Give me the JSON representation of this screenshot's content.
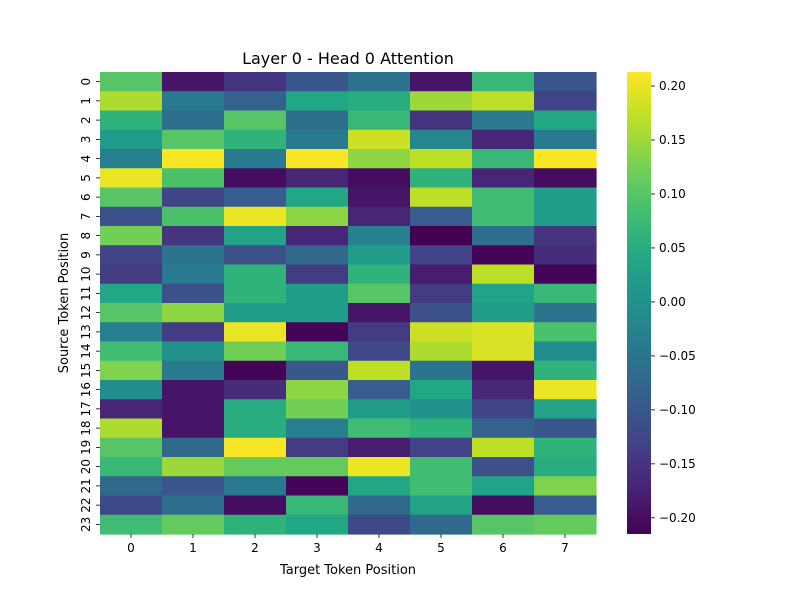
{
  "chart_data": {
    "type": "heatmap",
    "title": "Layer 0 - Head 0 Attention",
    "xlabel": "Target Token Position",
    "ylabel": "Source Token Position",
    "x_categories": [
      "0",
      "1",
      "2",
      "3",
      "4",
      "5",
      "6",
      "7"
    ],
    "y_categories": [
      "0",
      "1",
      "2",
      "3",
      "4",
      "5",
      "6",
      "7",
      "8",
      "9",
      "10",
      "11",
      "12",
      "13",
      "14",
      "15",
      "16",
      "17",
      "18",
      "19",
      "20",
      "21",
      "22",
      "23"
    ],
    "colormap": "viridis",
    "vmin": -0.215,
    "vmax": 0.213,
    "colorbar_ticks": [
      -0.2,
      -0.15,
      -0.1,
      -0.05,
      0.0,
      0.05,
      0.1,
      0.15,
      0.2
    ],
    "colorbar_tick_labels": [
      "−0.20",
      "−0.15",
      "−0.10",
      "−0.05",
      "0.00",
      "0.05",
      "0.10",
      "0.15",
      "0.20"
    ],
    "values": [
      [
        0.1,
        -0.19,
        -0.15,
        -0.1,
        -0.05,
        -0.19,
        0.07,
        -0.1
      ],
      [
        0.16,
        -0.04,
        -0.08,
        0.04,
        0.05,
        0.15,
        0.17,
        -0.13
      ],
      [
        0.06,
        -0.06,
        0.1,
        -0.06,
        0.07,
        -0.15,
        -0.04,
        0.04
      ],
      [
        0.02,
        0.1,
        0.06,
        -0.04,
        0.18,
        -0.02,
        -0.17,
        -0.04
      ],
      [
        -0.03,
        0.21,
        -0.04,
        0.21,
        0.14,
        0.17,
        0.07,
        0.21
      ],
      [
        0.2,
        0.09,
        -0.2,
        -0.17,
        -0.2,
        0.06,
        -0.17,
        -0.2
      ],
      [
        0.1,
        -0.13,
        -0.09,
        0.04,
        -0.19,
        0.17,
        0.08,
        0.02
      ],
      [
        -0.11,
        0.09,
        0.2,
        0.14,
        -0.17,
        -0.09,
        0.08,
        0.02
      ],
      [
        0.12,
        -0.15,
        0.03,
        -0.17,
        -0.03,
        -0.22,
        -0.06,
        -0.15
      ],
      [
        -0.13,
        -0.05,
        -0.11,
        -0.07,
        0.02,
        -0.13,
        -0.21,
        -0.16
      ],
      [
        -0.14,
        -0.04,
        0.06,
        -0.14,
        0.06,
        -0.18,
        0.17,
        -0.21
      ],
      [
        0.04,
        -0.11,
        0.06,
        0.02,
        0.1,
        -0.14,
        0.03,
        0.07
      ],
      [
        0.1,
        0.14,
        0.02,
        0.02,
        -0.19,
        -0.11,
        0.02,
        -0.05
      ],
      [
        -0.03,
        -0.14,
        0.2,
        -0.21,
        -0.14,
        0.18,
        0.19,
        0.09
      ],
      [
        0.08,
        0.0,
        0.12,
        0.07,
        -0.12,
        0.16,
        0.19,
        -0.01
      ],
      [
        0.13,
        -0.04,
        -0.21,
        -0.1,
        0.17,
        -0.05,
        -0.19,
        0.06
      ],
      [
        -0.01,
        -0.19,
        -0.16,
        0.14,
        -0.09,
        0.04,
        -0.17,
        0.2
      ],
      [
        -0.17,
        -0.19,
        0.05,
        0.12,
        0.02,
        0.0,
        -0.13,
        0.03
      ],
      [
        0.16,
        -0.19,
        0.05,
        -0.03,
        0.08,
        0.06,
        -0.08,
        -0.1
      ],
      [
        0.1,
        -0.07,
        0.21,
        -0.14,
        -0.18,
        -0.13,
        0.17,
        0.06
      ],
      [
        0.07,
        0.15,
        0.11,
        0.11,
        0.2,
        0.08,
        -0.11,
        0.05
      ],
      [
        -0.07,
        -0.1,
        -0.04,
        -0.21,
        0.04,
        0.08,
        0.03,
        0.13
      ],
      [
        -0.12,
        -0.06,
        -0.2,
        0.07,
        -0.07,
        0.03,
        -0.2,
        -0.09
      ],
      [
        0.08,
        0.11,
        0.06,
        0.04,
        -0.12,
        -0.07,
        0.1,
        0.11
      ]
    ]
  }
}
